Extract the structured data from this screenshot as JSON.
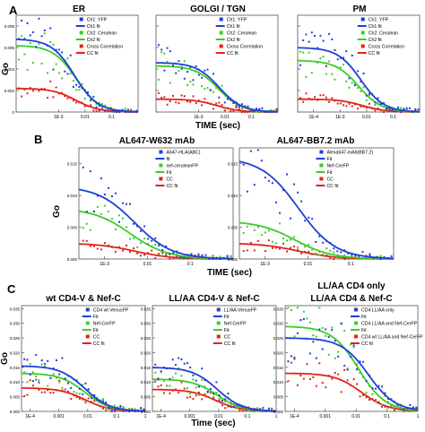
{
  "panels": [
    {
      "letter": "A",
      "xlabel": "TIME (sec)",
      "ylabel": "Go",
      "yticks": [
        "0.008",
        "0.006",
        "0.004",
        "0.002",
        "0"
      ],
      "charts": [
        {
          "title": "ER",
          "xticks": [
            "1E-3",
            "0.01",
            "0.1"
          ],
          "legend": [
            "Ch1: YFP",
            "Ch1 fit",
            "Ch2: Cerulean",
            "Ch2 fit",
            "Cross Correlation",
            "CC fit"
          ],
          "curves": {
            "blue": [
              0.0068,
              0.004
            ],
            "green": [
              0.0062,
              0.0046
            ],
            "red": [
              0.0022,
              0.0045
            ]
          }
        },
        {
          "title": "GOLGI / TGN",
          "xticks": [
            "1E-3",
            "0.01",
            "0.1"
          ],
          "legend": [
            "Ch1: YFP",
            "Ch1 fit",
            "Ch2: Cerulean",
            "Ch2 fit",
            "Cross Correlation",
            "CC fit"
          ],
          "curves": {
            "blue": [
              0.0046,
              0.006
            ],
            "green": [
              0.0043,
              0.0058
            ],
            "red": [
              0.0012,
              0.005
            ]
          }
        },
        {
          "title": "PM",
          "xticks": [
            "1E-4",
            "1E-3",
            "0.01",
            "0.1"
          ],
          "legend": [
            "Ch1: YFP",
            "Ch1 fit",
            "Ch2: Cerulean",
            "Ch2 fit",
            "Cross Correlation",
            "CC fit"
          ],
          "curves": {
            "blue": [
              0.006,
              0.006
            ],
            "green": [
              0.0048,
              0.005
            ],
            "red": [
              0.0012,
              0.007
            ]
          }
        }
      ]
    },
    {
      "letter": "B",
      "xlabel": "TIME (sec)",
      "ylabel": "Go",
      "yticks": [
        "0.015",
        "0.010",
        "0.005",
        "0.000"
      ],
      "charts": [
        {
          "title": "AL647-W632 mAb",
          "xticks": [
            "1E-3",
            "0.01",
            "0.1"
          ],
          "legend": [
            "A647-HLA(ABC)",
            "fit",
            "nef-ceruleanFP",
            "Fit",
            "CC",
            "CC fit"
          ],
          "curves": {
            "blue": [
              0.0115,
              0.005
            ],
            "green": [
              0.008,
              0.004
            ],
            "red": [
              0.0025,
              0.005
            ]
          }
        },
        {
          "title": "AL647-BB7.2 mAb",
          "xticks": [
            "1E-3",
            "0.01",
            "0.1"
          ],
          "legend": [
            "Alexa647-mAb(BB7.2)",
            "Fit",
            "Nef-CerFP",
            "Fit",
            "CC",
            "CC fit"
          ],
          "curves": {
            "blue": [
              0.016,
              0.006
            ],
            "green": [
              0.006,
              0.005
            ],
            "red": [
              0.0025,
              0.006
            ]
          }
        }
      ]
    },
    {
      "letter": "C",
      "xlabel": "Time (sec)",
      "ylabel": "Go",
      "yticks": [
        "0.035",
        "0.030",
        "0.025",
        "0.020",
        "0.015",
        "0.010",
        "0.005",
        "0.000"
      ],
      "charts": [
        {
          "title": "wt  CD4-V & Nef-C",
          "xticks": [
            "1E-4",
            "0.001",
            "0.01",
            "0.1",
            "1"
          ],
          "legend": [
            "CD4 wt VenusFP",
            "Fit",
            "Nef-CerFP",
            "Fit",
            "CC",
            "CC fit"
          ],
          "curves": {
            "blue": [
              0.0155,
              0.008
            ],
            "green": [
              0.013,
              0.008
            ],
            "red": [
              0.008,
              0.008
            ]
          }
        },
        {
          "title": "LL/AA CD4-V & Nef-C",
          "xticks": [
            "1E-4",
            "0.001",
            "0.01",
            "0.1",
            "1"
          ],
          "legend": [
            "LL/AA VenusFP",
            "Fit",
            "Nef-CerFP",
            "Fit",
            "CC",
            "CC fit"
          ],
          "curves": {
            "blue": [
              0.015,
              0.009
            ],
            "green": [
              0.011,
              0.009
            ],
            "red": [
              0.0075,
              0.008
            ]
          }
        },
        {
          "title_line1": "LL/AA CD4 only",
          "title": "LL/AA CD4 & Nef-C",
          "xticks": [
            "1E-4",
            "0.001",
            "0.01",
            "0.1",
            "1"
          ],
          "legend": [
            "CD4 LL/AA only",
            "Fit",
            "CD4 LL/AA and Nef-CerFP",
            "Fit",
            "CD4 wt LL/AA and Nef-CerFP",
            "CC fit"
          ],
          "curves": {
            "blue": [
              0.025,
              0.025
            ],
            "green": [
              0.029,
              0.012
            ],
            "red": [
              0.013,
              0.015
            ]
          }
        }
      ]
    }
  ],
  "colors": {
    "blue": "#1f3fd6",
    "green": "#3ccc2a",
    "red": "#e0241b"
  },
  "chart_data": [
    {
      "type": "scatter",
      "title": "ER",
      "xlabel": "TIME (sec)",
      "ylabel": "Go",
      "ylim": [
        0,
        0.009
      ],
      "xlog": true,
      "series": [
        {
          "name": "Ch1: YFP",
          "values_fit": {
            "G0": 0.0068,
            "tau": 0.004
          }
        },
        {
          "name": "Ch2: Cerulean",
          "values_fit": {
            "G0": 0.0062,
            "tau": 0.0046
          }
        },
        {
          "name": "Cross Correlation",
          "values_fit": {
            "G0": 0.0022,
            "tau": 0.0045
          }
        }
      ]
    },
    {
      "type": "scatter",
      "title": "GOLGI / TGN",
      "xlabel": "TIME (sec)",
      "ylabel": "Go",
      "xlog": true,
      "series": [
        {
          "name": "Ch1: YFP",
          "values_fit": {
            "G0": 0.0046,
            "tau": 0.006
          }
        },
        {
          "name": "Ch2: Cerulean",
          "values_fit": {
            "G0": 0.0043,
            "tau": 0.0058
          }
        },
        {
          "name": "Cross Correlation",
          "values_fit": {
            "G0": 0.0012,
            "tau": 0.005
          }
        }
      ]
    },
    {
      "type": "scatter",
      "title": "PM",
      "xlabel": "TIME (sec)",
      "ylabel": "Go",
      "xlog": true,
      "series": [
        {
          "name": "Ch1: YFP",
          "values_fit": {
            "G0": 0.006,
            "tau": 0.006
          }
        },
        {
          "name": "Ch2: Cerulean",
          "values_fit": {
            "G0": 0.0048,
            "tau": 0.005
          }
        },
        {
          "name": "Cross Correlation",
          "values_fit": {
            "G0": 0.0012,
            "tau": 0.007
          }
        }
      ]
    },
    {
      "type": "scatter",
      "title": "AL647-W632 mAb",
      "xlabel": "TIME (sec)",
      "ylabel": "Go",
      "ylim": [
        0,
        0.017
      ],
      "xlog": true,
      "series": [
        {
          "name": "A647-HLA(ABC)",
          "values_fit": {
            "G0": 0.0115,
            "tau": 0.005
          }
        },
        {
          "name": "nef-ceruleanFP",
          "values_fit": {
            "G0": 0.008,
            "tau": 0.004
          }
        },
        {
          "name": "CC",
          "values_fit": {
            "G0": 0.0025,
            "tau": 0.005
          }
        }
      ]
    },
    {
      "type": "scatter",
      "title": "AL647-BB7.2 mAb",
      "xlabel": "TIME (sec)",
      "ylabel": "Go",
      "ylim": [
        0,
        0.017
      ],
      "xlog": true,
      "series": [
        {
          "name": "Alexa647-mAb(BB7.2)",
          "values_fit": {
            "G0": 0.016,
            "tau": 0.006
          }
        },
        {
          "name": "Nef-CerFP",
          "values_fit": {
            "G0": 0.006,
            "tau": 0.005
          }
        },
        {
          "name": "CC",
          "values_fit": {
            "G0": 0.0025,
            "tau": 0.006
          }
        }
      ]
    },
    {
      "type": "scatter",
      "title": "wt  CD4-V & Nef-C",
      "xlabel": "Time (sec)",
      "ylabel": "Go",
      "ylim": [
        0,
        0.035
      ],
      "xlog": true,
      "series": [
        {
          "name": "CD4 wt VenusFP",
          "values_fit": {
            "G0": 0.0155,
            "tau": 0.008
          }
        },
        {
          "name": "Nef-CerFP",
          "values_fit": {
            "G0": 0.013,
            "tau": 0.008
          }
        },
        {
          "name": "CC",
          "values_fit": {
            "G0": 0.008,
            "tau": 0.008
          }
        }
      ]
    },
    {
      "type": "scatter",
      "title": "LL/AA CD4-V & Nef-C",
      "xlabel": "Time (sec)",
      "ylabel": "Go",
      "ylim": [
        0,
        0.035
      ],
      "xlog": true,
      "series": [
        {
          "name": "LL/AA VenusFP",
          "values_fit": {
            "G0": 0.015,
            "tau": 0.009
          }
        },
        {
          "name": "Nef-CerFP",
          "values_fit": {
            "G0": 0.011,
            "tau": 0.009
          }
        },
        {
          "name": "CC",
          "values_fit": {
            "G0": 0.0075,
            "tau": 0.008
          }
        }
      ]
    },
    {
      "type": "scatter",
      "title": "LL/AA CD4 only / LL/AA CD4 & Nef-C",
      "xlabel": "Time (sec)",
      "ylabel": "Go",
      "ylim": [
        0,
        0.035
      ],
      "xlog": true,
      "series": [
        {
          "name": "CD4 LL/AA only",
          "values_fit": {
            "G0": 0.025,
            "tau": 0.025
          }
        },
        {
          "name": "CD4 LL/AA and Nef-CerFP",
          "values_fit": {
            "G0": 0.029,
            "tau": 0.012
          }
        },
        {
          "name": "CD4 wt LL/AA and Nef-CerFP",
          "values_fit": {
            "G0": 0.013,
            "tau": 0.015
          }
        }
      ]
    }
  ]
}
